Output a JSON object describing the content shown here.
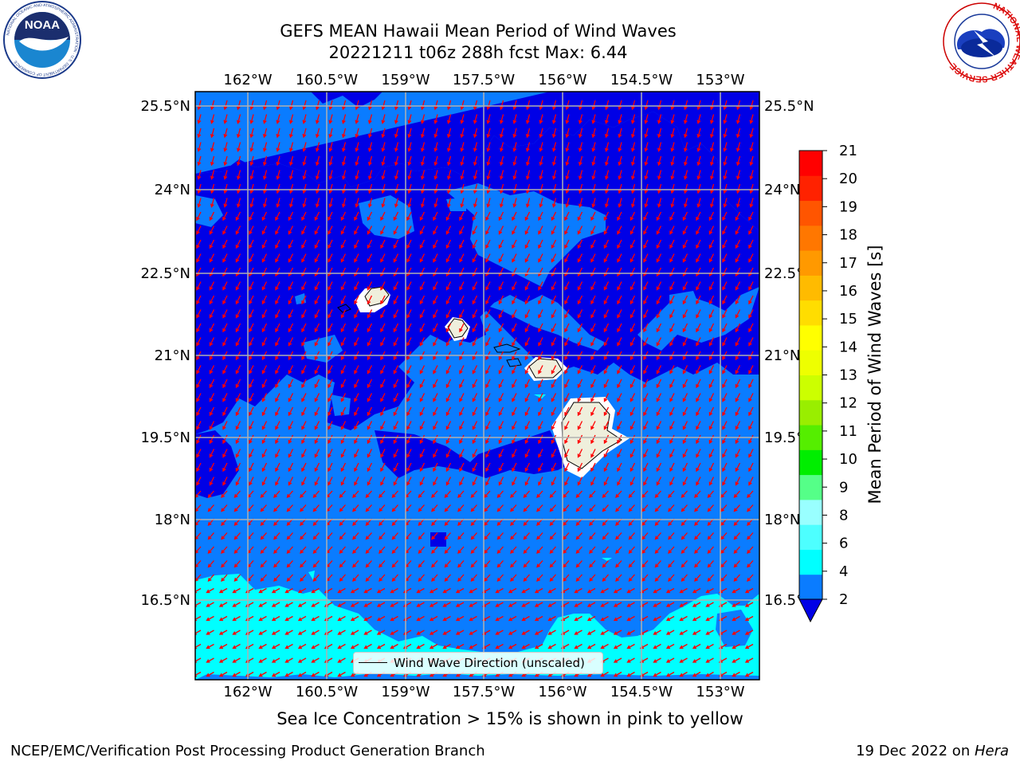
{
  "title": {
    "line1": "GEFS MEAN Hawaii Mean Period of Wind Waves",
    "line2": "20221211 t06z 288h fcst   Max: 6.44"
  },
  "logos": {
    "noaa_text": "NOAA",
    "noaa_ring": "NATIONAL OCEANIC AND ATMOSPHERIC ADMINISTRATION · U.S. DEPARTMENT OF COMMERCE",
    "nws_ring": "NATIONAL WEATHER SERVICE"
  },
  "map": {
    "lon_ticks": [
      "162°W",
      "160.5°W",
      "159°W",
      "157.5°W",
      "156°W",
      "154.5°W",
      "153°W"
    ],
    "lat_ticks_left": [
      "25.5°N",
      "24°N",
      "22.5°N",
      "21°N",
      "19.5°N",
      "18°N",
      "16.5°N"
    ],
    "lat_ticks_right": [
      "25.5°N",
      "24°N",
      "22.5°N",
      "21°N",
      "19.5°N",
      "18°N",
      "16.5°N"
    ],
    "legend_label": "Wind Wave Direction (unscaled)",
    "colors": {
      "period_2_4": "#0a7cff",
      "period_lt_2": "#0000e6",
      "period_4_6": "#00ffff",
      "land": "#efefdc",
      "grid": "#b0b0b0",
      "arrow": "#ff0000"
    }
  },
  "colorbar": {
    "label": "Mean Period of Wind Waves [s]",
    "tick_labels": [
      "21",
      "20",
      "19",
      "18",
      "17",
      "16",
      "15",
      "14",
      "13",
      "12",
      "11",
      "10",
      "9",
      "8",
      "6",
      "4",
      "2"
    ],
    "colors_bottom_to_top": [
      "#0a7cff",
      "#00ffff",
      "#4dffff",
      "#99ffff",
      "#55ff88",
      "#00ee00",
      "#55ee00",
      "#99ee00",
      "#ccff00",
      "#eeff00",
      "#ffff00",
      "#ffdd00",
      "#ffbb00",
      "#ff9900",
      "#ff7700",
      "#ff5500",
      "#ff2200",
      "#ff0000"
    ],
    "extend_color": "#0000e6"
  },
  "caption": "Sea Ice Concentration > 15% is shown in pink to yellow",
  "footer": {
    "left": "NCEP/EMC/Verification Post Processing Product Generation Branch",
    "right_prefix": "19 Dec 2022 on ",
    "right_italic": "Hera"
  }
}
